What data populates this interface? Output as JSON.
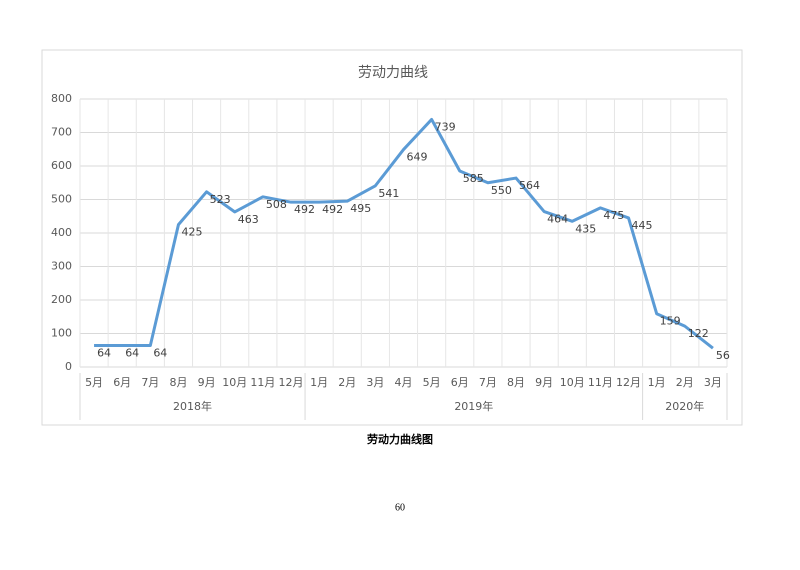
{
  "chart_data": {
    "type": "line",
    "title": "劳动力曲线",
    "category_groups": [
      {
        "name": "2018年",
        "categories": [
          "5月",
          "6月",
          "7月",
          "8月",
          "9月",
          "10月",
          "11月",
          "12月"
        ]
      },
      {
        "name": "2019年",
        "categories": [
          "1月",
          "2月",
          "3月",
          "4月",
          "5月",
          "6月",
          "7月",
          "8月",
          "9月",
          "10月",
          "11月",
          "12月"
        ]
      },
      {
        "name": "2020年",
        "categories": [
          "1月",
          "2月",
          "3月"
        ]
      }
    ],
    "series": [
      {
        "name": "劳动力",
        "color": "#5b9bd5",
        "values": [
          64,
          64,
          64,
          425,
          523,
          463,
          508,
          492,
          492,
          495,
          541,
          649,
          739,
          585,
          550,
          564,
          464,
          435,
          475,
          445,
          159,
          122,
          56
        ]
      }
    ],
    "ylim": [
      0,
      800
    ],
    "yticks": [
      0,
      100,
      200,
      300,
      400,
      500,
      600,
      700,
      800
    ],
    "grid": true
  },
  "caption": "劳动力曲线图",
  "page_number": "60"
}
